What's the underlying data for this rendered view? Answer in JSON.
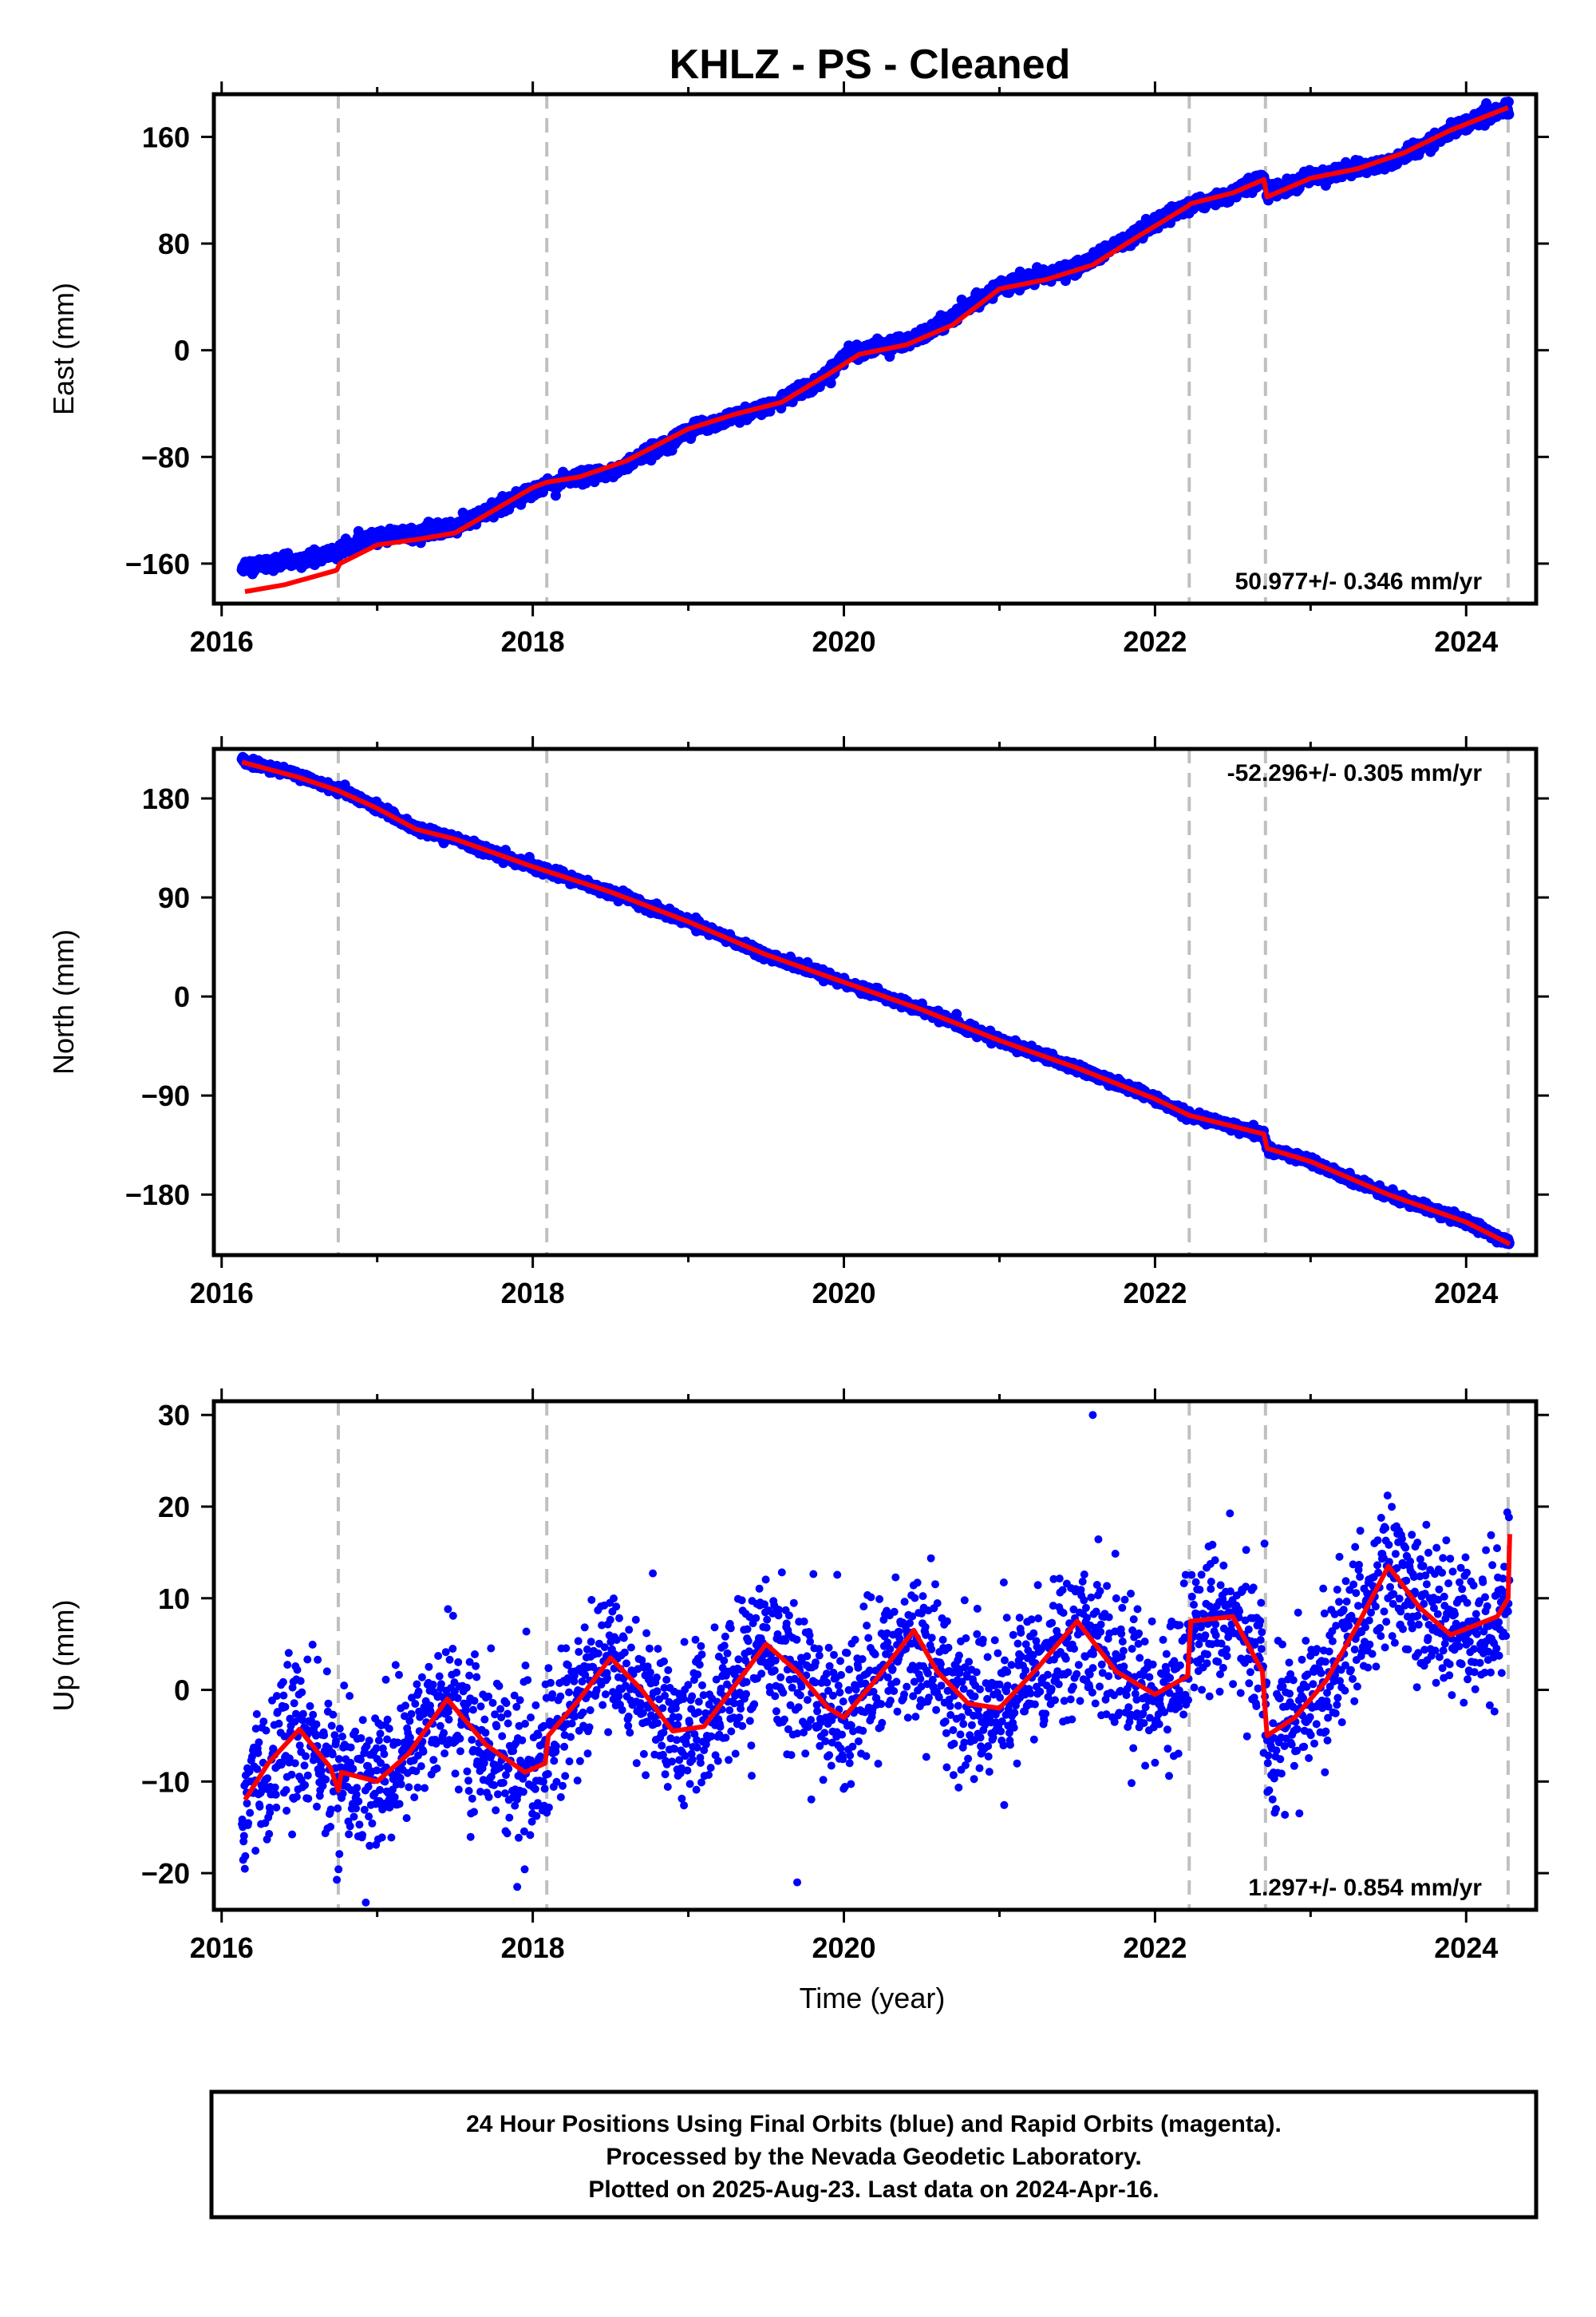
{
  "title": "KHLZ  - PS - Cleaned",
  "xlabel": "Time (year)",
  "colors": {
    "final_orbits": "#0000ff",
    "model": "#ff0000",
    "event_lines": "#c0c0c0",
    "frame": "#000000"
  },
  "footer": {
    "line1": "24 Hour Positions Using Final Orbits (blue) and Rapid Orbits (magenta).",
    "line2": "Processed by the Nevada Geodetic Laboratory.",
    "line3": "Plotted on 2025-Aug-23. Last data on 2024-Apr-16."
  },
  "chart_data": [
    {
      "type": "scatter",
      "name": "east",
      "ylabel": "East (mm)",
      "rate_label": "50.977+/- 0.346 mm/yr",
      "rate_position": "bottom-right",
      "xlim": [
        2015.95,
        2024.45
      ],
      "ylim": [
        -190,
        192
      ],
      "yticks": [
        -160,
        -80,
        0,
        80,
        160
      ],
      "xticks": [
        2016,
        2018,
        2020,
        2022,
        2024
      ],
      "event_lines_x": [
        2016.75,
        2018.09,
        2022.22,
        2022.71,
        2024.27
      ],
      "trend": [
        [
          2016.13,
          -162
        ],
        [
          2016.5,
          -158
        ],
        [
          2016.75,
          -151
        ],
        [
          2017.0,
          -140
        ],
        [
          2017.5,
          -133
        ],
        [
          2017.9,
          -110
        ],
        [
          2018.09,
          -100
        ],
        [
          2018.5,
          -92
        ],
        [
          2019.0,
          -60
        ],
        [
          2019.5,
          -43
        ],
        [
          2019.9,
          -20
        ],
        [
          2020.0,
          -3
        ],
        [
          2020.5,
          10
        ],
        [
          2021.0,
          48
        ],
        [
          2021.5,
          62
        ],
        [
          2022.0,
          95
        ],
        [
          2022.22,
          108
        ],
        [
          2022.5,
          117
        ],
        [
          2022.71,
          130
        ],
        [
          2022.72,
          116
        ],
        [
          2023.0,
          130
        ],
        [
          2023.5,
          140
        ],
        [
          2024.0,
          170
        ],
        [
          2024.28,
          182
        ]
      ],
      "model": [
        [
          2016.15,
          -181
        ],
        [
          2016.4,
          -176
        ],
        [
          2016.74,
          -165
        ],
        [
          2016.76,
          -160
        ],
        [
          2017.0,
          -146
        ],
        [
          2017.25,
          -142
        ],
        [
          2017.5,
          -137
        ],
        [
          2017.75,
          -120
        ],
        [
          2018.0,
          -103
        ],
        [
          2018.09,
          -99
        ],
        [
          2018.3,
          -95
        ],
        [
          2018.6,
          -83
        ],
        [
          2019.0,
          -59
        ],
        [
          2019.3,
          -48
        ],
        [
          2019.6,
          -39
        ],
        [
          2019.9,
          -18
        ],
        [
          2020.1,
          -3
        ],
        [
          2020.4,
          4
        ],
        [
          2020.7,
          19
        ],
        [
          2021.0,
          46
        ],
        [
          2021.3,
          53
        ],
        [
          2021.6,
          64
        ],
        [
          2021.9,
          86
        ],
        [
          2022.21,
          108
        ],
        [
          2022.23,
          110
        ],
        [
          2022.5,
          118
        ],
        [
          2022.7,
          128
        ],
        [
          2022.72,
          115
        ],
        [
          2023.0,
          129
        ],
        [
          2023.3,
          136
        ],
        [
          2023.6,
          148
        ],
        [
          2023.9,
          165
        ],
        [
          2024.27,
          182
        ]
      ],
      "noise_mm": 2.5
    },
    {
      "type": "scatter",
      "name": "north",
      "ylabel": "North (mm)",
      "rate_label": "-52.296+/- 0.305 mm/yr",
      "rate_position": "top-right",
      "xlim": [
        2015.95,
        2024.45
      ],
      "ylim": [
        -235,
        225
      ],
      "yticks": [
        -180,
        -90,
        0,
        90,
        180
      ],
      "xticks": [
        2016,
        2018,
        2020,
        2022,
        2024
      ],
      "event_lines_x": [
        2016.75,
        2018.09,
        2022.22,
        2022.71,
        2024.27
      ],
      "trend": [
        [
          2016.13,
          215
        ],
        [
          2016.5,
          200
        ],
        [
          2016.75,
          188
        ],
        [
          2017.0,
          172
        ],
        [
          2017.25,
          152
        ],
        [
          2017.5,
          143
        ],
        [
          2018.0,
          118
        ],
        [
          2018.5,
          95
        ],
        [
          2019.0,
          68
        ],
        [
          2019.5,
          38
        ],
        [
          2020.0,
          13
        ],
        [
          2020.5,
          -12
        ],
        [
          2021.0,
          -40
        ],
        [
          2021.5,
          -65
        ],
        [
          2022.0,
          -93
        ],
        [
          2022.22,
          -108
        ],
        [
          2022.7,
          -125
        ],
        [
          2022.72,
          -138
        ],
        [
          2023.0,
          -150
        ],
        [
          2023.5,
          -180
        ],
        [
          2024.0,
          -205
        ],
        [
          2024.28,
          -225
        ]
      ],
      "model": [
        [
          2016.13,
          213
        ],
        [
          2016.5,
          199
        ],
        [
          2016.75,
          187
        ],
        [
          2017.0,
          171
        ],
        [
          2017.25,
          152
        ],
        [
          2017.5,
          143
        ],
        [
          2018.0,
          118
        ],
        [
          2018.5,
          95
        ],
        [
          2019.0,
          68
        ],
        [
          2019.5,
          38
        ],
        [
          2020.0,
          13
        ],
        [
          2020.5,
          -12
        ],
        [
          2021.0,
          -40
        ],
        [
          2021.5,
          -65
        ],
        [
          2022.0,
          -93
        ],
        [
          2022.22,
          -108
        ],
        [
          2022.7,
          -125
        ],
        [
          2022.72,
          -138
        ],
        [
          2023.0,
          -150
        ],
        [
          2023.5,
          -180
        ],
        [
          2024.0,
          -205
        ],
        [
          2024.28,
          -225
        ]
      ],
      "noise_mm": 2.0
    },
    {
      "type": "scatter",
      "name": "up",
      "ylabel": "Up (mm)",
      "rate_label": "1.297+/- 0.854 mm/yr",
      "rate_position": "bottom-right",
      "xlim": [
        2015.95,
        2024.45
      ],
      "ylim": [
        -24,
        31.5
      ],
      "yticks": [
        -20,
        -10,
        0,
        10,
        20,
        30
      ],
      "xticks": [
        2016,
        2018,
        2020,
        2022,
        2024
      ],
      "event_lines_x": [
        2016.75,
        2018.09,
        2022.22,
        2022.71,
        2024.27
      ],
      "model": [
        [
          2016.15,
          -12
        ],
        [
          2016.3,
          -8
        ],
        [
          2016.5,
          -4.3
        ],
        [
          2016.7,
          -8.5
        ],
        [
          2016.75,
          -11
        ],
        [
          2016.77,
          -9
        ],
        [
          2017.0,
          -10
        ],
        [
          2017.2,
          -7
        ],
        [
          2017.45,
          -1
        ],
        [
          2017.7,
          -6
        ],
        [
          2017.95,
          -9
        ],
        [
          2018.08,
          -8
        ],
        [
          2018.1,
          -5
        ],
        [
          2018.3,
          -1
        ],
        [
          2018.5,
          3.5
        ],
        [
          2018.7,
          0
        ],
        [
          2018.9,
          -4.5
        ],
        [
          2019.1,
          -4
        ],
        [
          2019.3,
          0.5
        ],
        [
          2019.5,
          5
        ],
        [
          2019.7,
          2
        ],
        [
          2019.9,
          -2
        ],
        [
          2020.0,
          -3
        ],
        [
          2020.2,
          1
        ],
        [
          2020.45,
          6.5
        ],
        [
          2020.6,
          2
        ],
        [
          2020.8,
          -1.5
        ],
        [
          2021.0,
          -2
        ],
        [
          2021.25,
          2.5
        ],
        [
          2021.5,
          7.5
        ],
        [
          2021.75,
          2
        ],
        [
          2022.0,
          -0.5
        ],
        [
          2022.21,
          1.5
        ],
        [
          2022.23,
          7.5
        ],
        [
          2022.5,
          8
        ],
        [
          2022.69,
          2
        ],
        [
          2022.72,
          -5
        ],
        [
          2022.9,
          -3
        ],
        [
          2023.1,
          1
        ],
        [
          2023.3,
          7
        ],
        [
          2023.5,
          13.5
        ],
        [
          2023.7,
          9
        ],
        [
          2023.9,
          6
        ],
        [
          2024.2,
          8
        ],
        [
          2024.27,
          10
        ],
        [
          2024.28,
          17
        ]
      ],
      "noise_mm": 4.0,
      "outliers": [
        [
          2021.6,
          30
        ],
        [
          2019.7,
          -21
        ],
        [
          2017.9,
          -21.5
        ]
      ]
    }
  ]
}
